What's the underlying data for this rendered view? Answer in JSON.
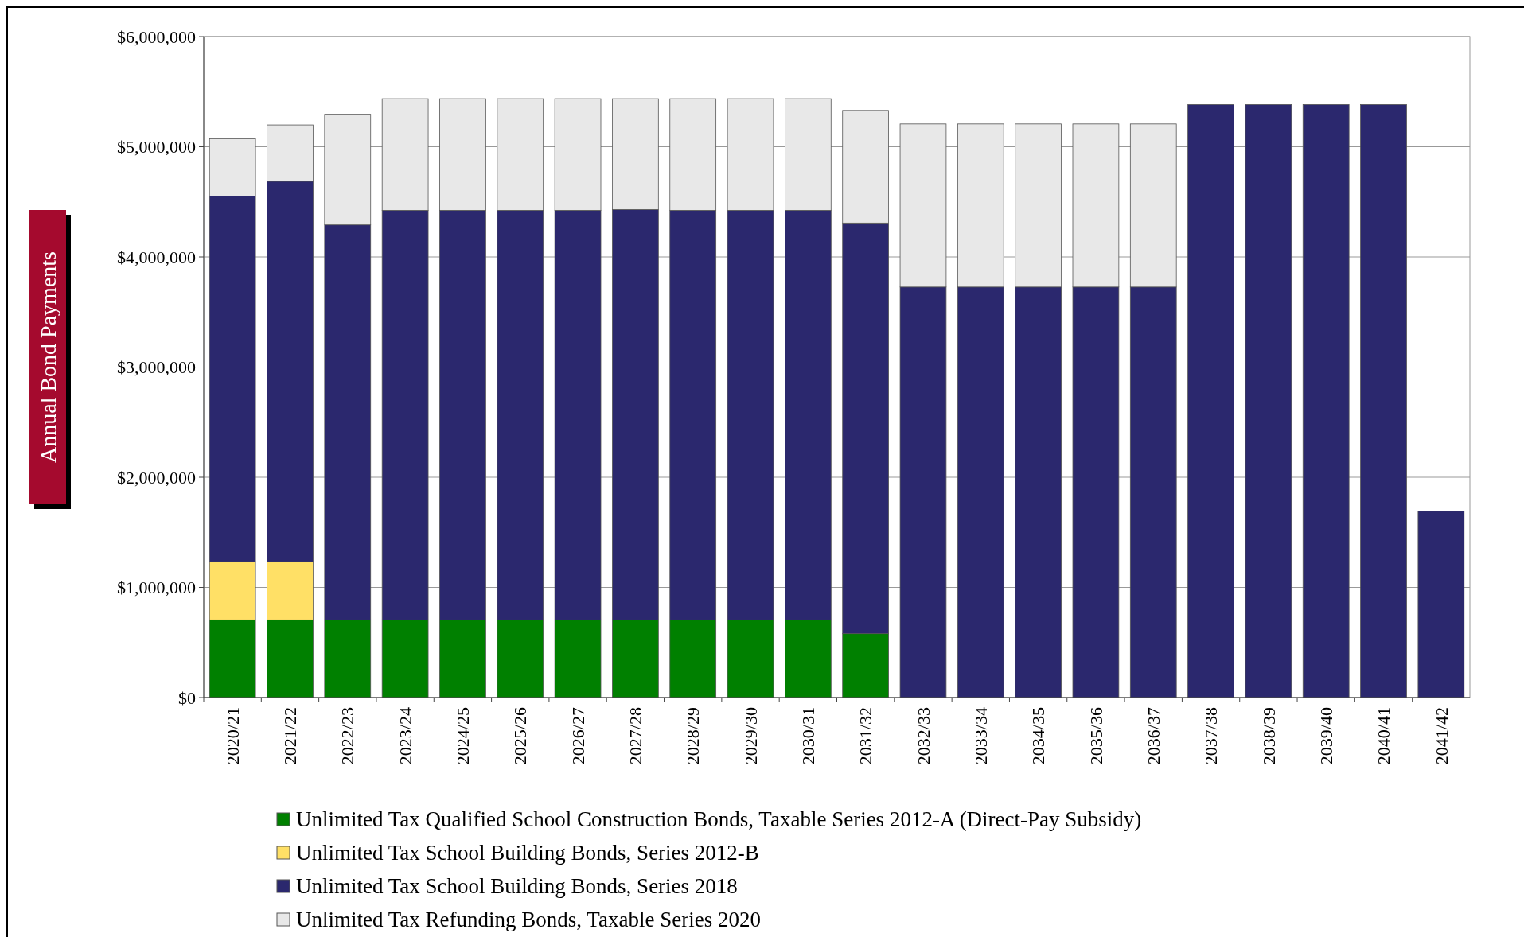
{
  "chart_data": {
    "type": "bar",
    "stacked": true,
    "ylabel": "Annual Bond Payments",
    "categories": [
      "2020/21",
      "2021/22",
      "2022/23",
      "2023/24",
      "2024/25",
      "2025/26",
      "2026/27",
      "2027/28",
      "2028/29",
      "2029/30",
      "2030/31",
      "2031/32",
      "2032/33",
      "2033/34",
      "2034/35",
      "2035/36",
      "2036/37",
      "2037/38",
      "2038/39",
      "2039/40",
      "2040/41",
      "2041/42"
    ],
    "series": [
      {
        "name": "Unlimited Tax Qualified School Construction Bonds, Taxable Series 2012-A (Direct-Pay Subsidy)",
        "color": "#008000",
        "values": [
          705000,
          705000,
          705000,
          705000,
          705000,
          705000,
          705000,
          705000,
          705000,
          705000,
          705000,
          580000,
          null,
          null,
          null,
          null,
          null,
          null,
          null,
          null,
          null,
          null
        ]
      },
      {
        "name": "Unlimited Tax School Building Bonds, Series 2012-B",
        "color": "#ffe066",
        "values": [
          528000,
          528000,
          null,
          null,
          null,
          null,
          null,
          null,
          null,
          null,
          null,
          null,
          null,
          null,
          null,
          null,
          null,
          null,
          null,
          null,
          null,
          null
        ]
      },
      {
        "name": "Unlimited Tax School Building Bonds, Series 2018",
        "color": "#2b286e",
        "values": [
          3320000,
          3454000,
          3586000,
          3718000,
          3718000,
          3718000,
          3718000,
          3725000,
          3718000,
          3718000,
          3718000,
          3728000,
          3727000,
          3727000,
          3727000,
          3727000,
          3727000,
          5383000,
          5383000,
          5383000,
          5383000,
          1692000
        ]
      },
      {
        "name": "Unlimited Tax Refunding Bonds, Taxable Series 2020",
        "color": "#e8e8e8",
        "values": [
          520000,
          511000,
          1004000,
          1013000,
          1013000,
          1013000,
          1013000,
          1006000,
          1013000,
          1013000,
          1013000,
          1022000,
          1480000,
          1480000,
          1480000,
          1480000,
          1480000,
          null,
          null,
          null,
          null,
          null
        ]
      }
    ],
    "ylim": [
      0,
      6000000
    ],
    "yticks": [
      {
        "value": 0,
        "label": "$0"
      },
      {
        "value": 1000000,
        "label": "$1,000,000"
      },
      {
        "value": 2000000,
        "label": "$2,000,000"
      },
      {
        "value": 3000000,
        "label": "$3,000,000"
      },
      {
        "value": 4000000,
        "label": "$4,000,000"
      },
      {
        "value": 5000000,
        "label": "$5,000,000"
      },
      {
        "value": 6000000,
        "label": "$6,000,000"
      }
    ],
    "grid": "y",
    "legend": "bottom"
  }
}
